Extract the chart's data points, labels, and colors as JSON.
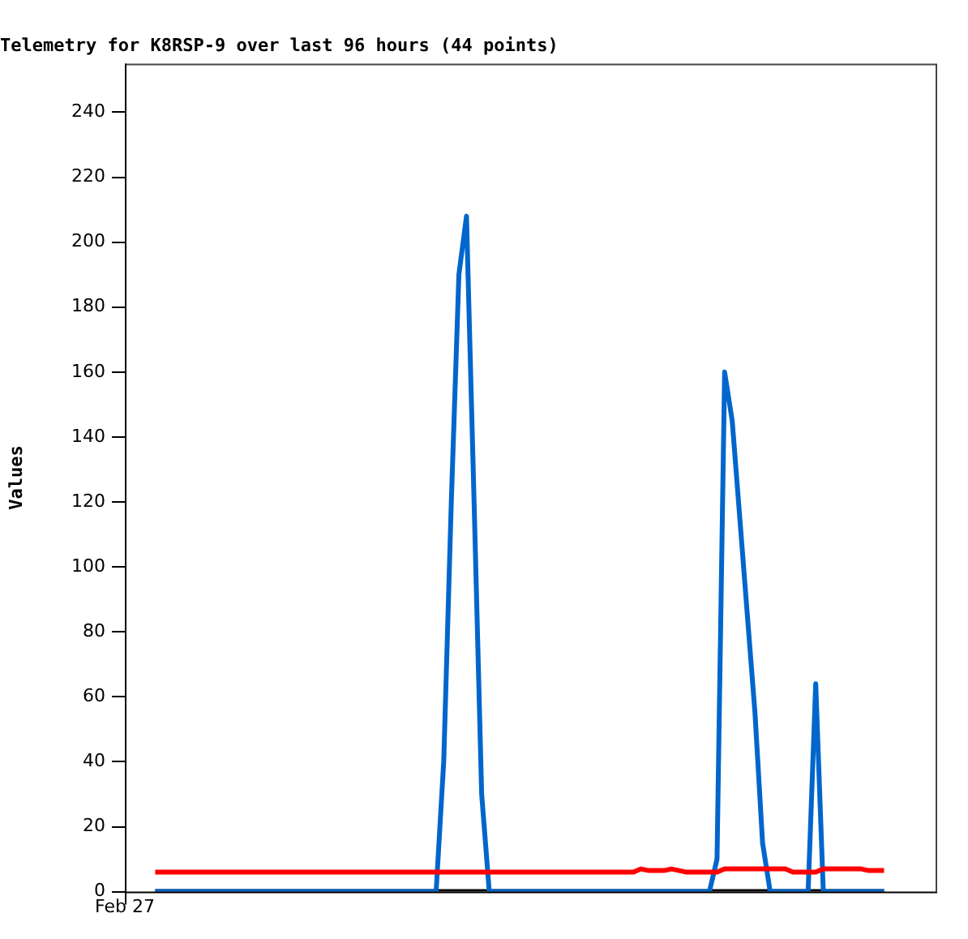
{
  "chart_data": {
    "type": "line",
    "title": "Telemetry for K8RSP-9 over last 96 hours (44 points)",
    "ylabel": "Values",
    "categories": [
      "Feb 27",
      null,
      null,
      null,
      null,
      null,
      null,
      null,
      null,
      null,
      null,
      null,
      null,
      null,
      null,
      null,
      null,
      null,
      null,
      null,
      null,
      null,
      null,
      null,
      null,
      null,
      null,
      null,
      null,
      null,
      null,
      null,
      null,
      null,
      null,
      null,
      null,
      null,
      null,
      null,
      null,
      null,
      null,
      null,
      null,
      null,
      null,
      null,
      null,
      null,
      null,
      null,
      null,
      null,
      null,
      null,
      null,
      null,
      null,
      null,
      null,
      null,
      null,
      null,
      null,
      null,
      null,
      null,
      null,
      null,
      null,
      null,
      null,
      null,
      null,
      null,
      null,
      null,
      null,
      null,
      null,
      null,
      null,
      null,
      null,
      null,
      null,
      null,
      null,
      null,
      null,
      null,
      null,
      null,
      null,
      null,
      null,
      null,
      null,
      null,
      null,
      null,
      null,
      null,
      null,
      null,
      null,
      null
    ],
    "ylim": [
      0,
      255
    ],
    "yticks": [
      0,
      20,
      40,
      60,
      80,
      100,
      120,
      140,
      160,
      180,
      200,
      220,
      240
    ],
    "grid": false,
    "legend": false,
    "marker": "none",
    "line_style": "solid",
    "series": [
      {
        "color": "#ff0000",
        "values": [
          null,
          null,
          null,
          null,
          6,
          6,
          6,
          6,
          6,
          6,
          6,
          6,
          6,
          6,
          6,
          6,
          6,
          6,
          6,
          6,
          6,
          6,
          6,
          6,
          6,
          6,
          6,
          6,
          6,
          6,
          6,
          6,
          6,
          6,
          6,
          6,
          6,
          6,
          6,
          6,
          6,
          6,
          6,
          6,
          6,
          6,
          6,
          6,
          6,
          6,
          6,
          6,
          6,
          6,
          6,
          6,
          6,
          6,
          6,
          6,
          6,
          6,
          6,
          6,
          6,
          6,
          6,
          6,
          7,
          6.5,
          6.5,
          6.5,
          7,
          6.5,
          6,
          6,
          6,
          6,
          6,
          7,
          7,
          7,
          7,
          7,
          7,
          7,
          7,
          7,
          6,
          6,
          6,
          6,
          7,
          7,
          7,
          7,
          7,
          7,
          6.5,
          6.5,
          6.5,
          null,
          null,
          null,
          null,
          null,
          null,
          null
        ]
      },
      {
        "color": "#0066cc",
        "values": [
          null,
          null,
          null,
          null,
          0,
          0,
          0,
          0,
          0,
          0,
          0,
          0,
          0,
          0,
          0,
          0,
          0,
          0,
          0,
          0,
          0,
          0,
          0,
          0,
          0,
          0,
          0,
          0,
          0,
          0,
          0,
          0,
          0,
          0,
          0,
          0,
          0,
          0,
          0,
          0,
          0,
          0,
          40,
          120,
          190,
          208,
          120,
          30,
          0,
          0,
          0,
          0,
          0,
          0,
          0,
          0,
          0,
          0,
          0,
          0,
          0,
          0,
          0,
          0,
          0,
          0,
          0,
          0,
          0,
          0,
          0,
          0,
          0,
          0,
          0,
          0,
          0,
          0,
          10,
          160,
          145,
          115,
          85,
          55,
          15,
          0,
          0,
          0,
          0,
          0,
          0,
          64,
          0,
          0,
          0,
          0,
          0,
          0,
          0,
          0,
          0,
          null,
          null,
          null,
          null,
          null,
          null,
          null
        ]
      },
      {
        "color": "#000000",
        "values": [
          null,
          null,
          null,
          null,
          0,
          0,
          0,
          0,
          0,
          0,
          0,
          0,
          0,
          0,
          0,
          0,
          0,
          0,
          0,
          0,
          0,
          0,
          0,
          0,
          0,
          0,
          0,
          0,
          0,
          0,
          0,
          0,
          0,
          0,
          0,
          0,
          0,
          0,
          0,
          0,
          0,
          0,
          0,
          0,
          0,
          0,
          0,
          0,
          0,
          0,
          0,
          0,
          0,
          0,
          0,
          0,
          0,
          0,
          0,
          0,
          0,
          0,
          0,
          0,
          0,
          0,
          0,
          0,
          0,
          0,
          0,
          0,
          0,
          0,
          0,
          0,
          0,
          0,
          0,
          0,
          0,
          0,
          0,
          0,
          0,
          0,
          0,
          0,
          0,
          0,
          0,
          0,
          0,
          0,
          0,
          0,
          0,
          0,
          0,
          0,
          0,
          null,
          null,
          null,
          null,
          null,
          null,
          null
        ]
      }
    ]
  }
}
